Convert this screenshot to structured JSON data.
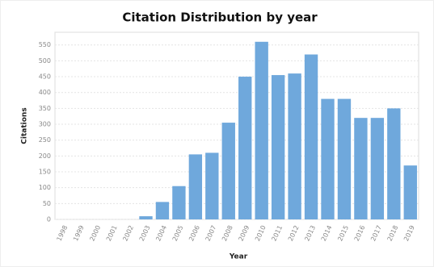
{
  "chart_data": {
    "type": "bar",
    "title": "Citation Distribution by year",
    "x_label": "Year",
    "y_label": "Citations",
    "categories": [
      "1998",
      "1999",
      "2000",
      "2001",
      "2002",
      "2003",
      "2004",
      "2005",
      "2006",
      "2007",
      "2008",
      "2009",
      "2010",
      "2011",
      "2012",
      "2013",
      "2014",
      "2015",
      "2016",
      "2017",
      "2018",
      "2019"
    ],
    "values": [
      0,
      0,
      0,
      0,
      0,
      10,
      55,
      105,
      205,
      210,
      305,
      450,
      560,
      455,
      460,
      520,
      380,
      380,
      320,
      320,
      350,
      170
    ],
    "color": "#6fa8dc",
    "ylim": [
      0,
      590
    ],
    "yticks": [
      0,
      50,
      100,
      150,
      200,
      250,
      300,
      350,
      400,
      450,
      500,
      550
    ],
    "grid": true
  }
}
